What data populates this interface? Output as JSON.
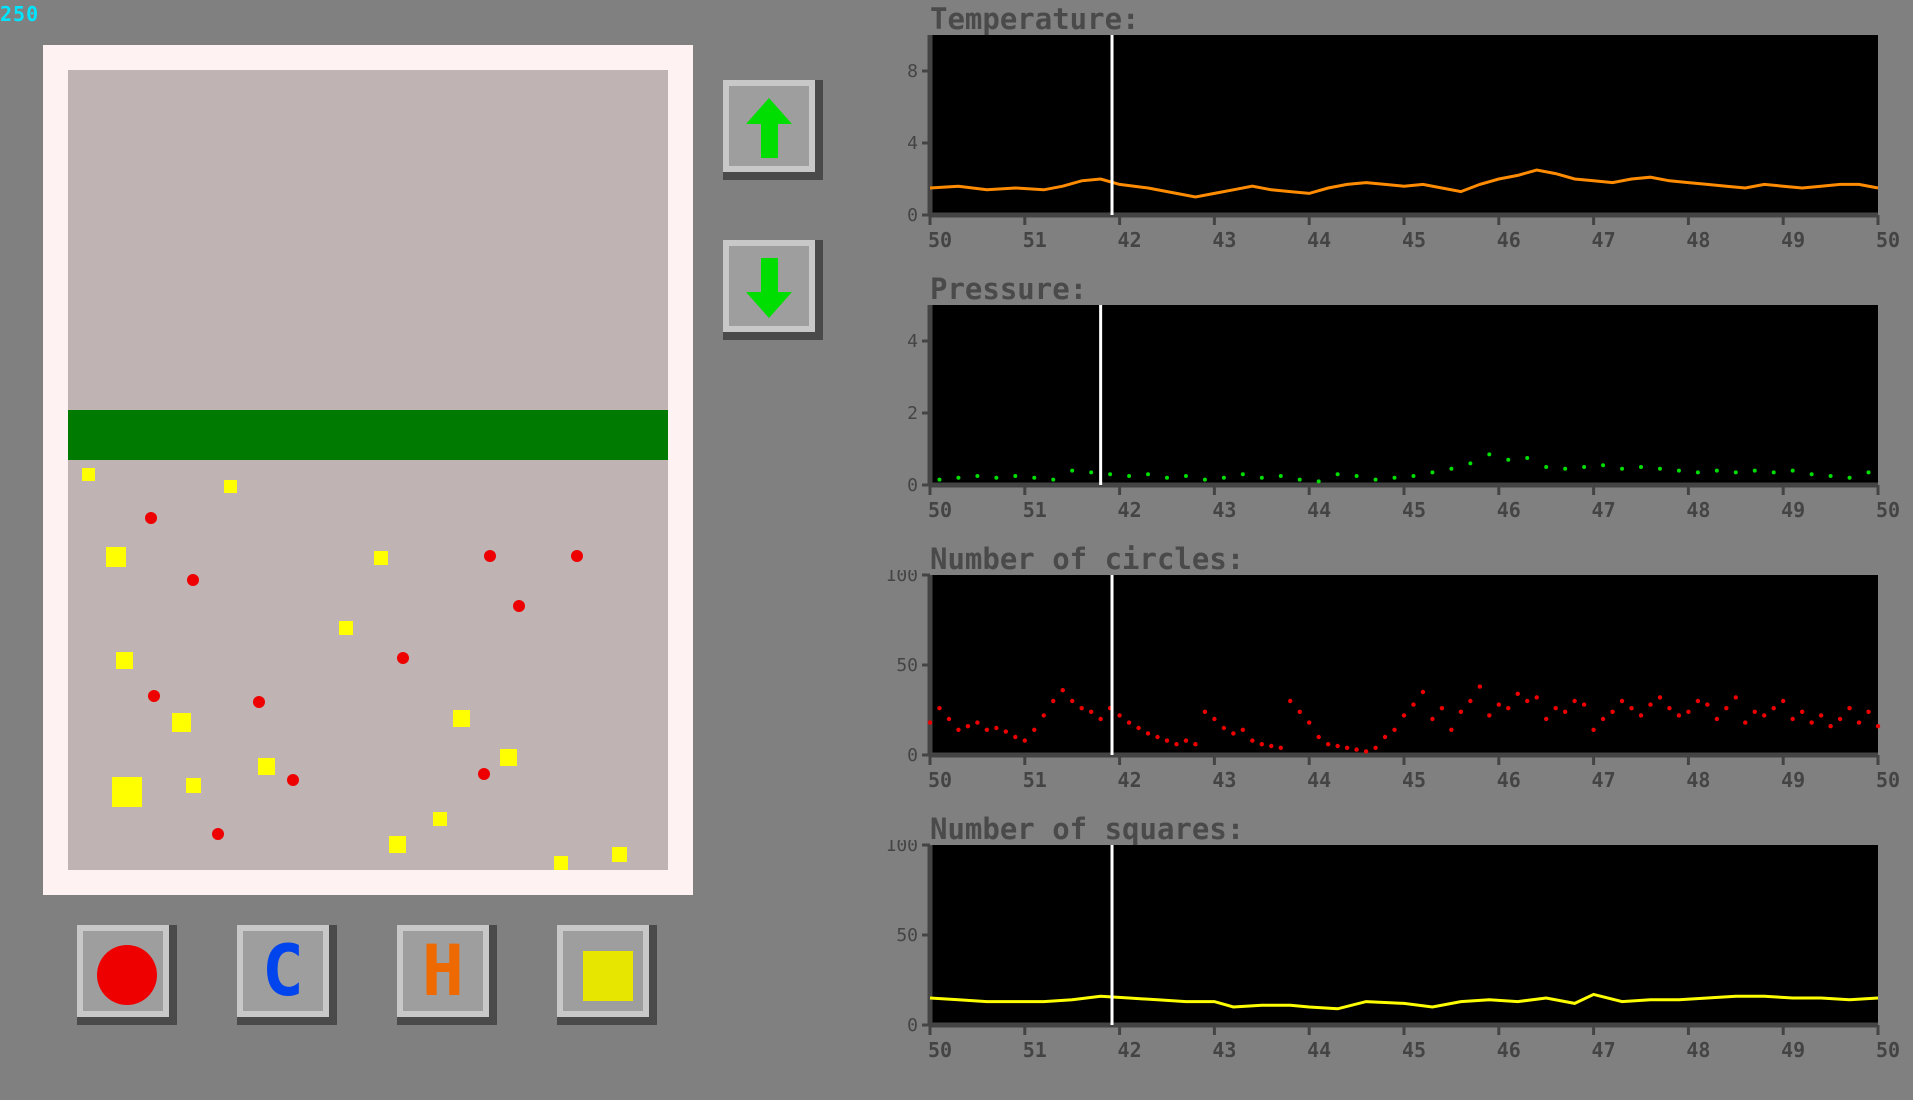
{
  "hud": {
    "counter": "250"
  },
  "simulation": {
    "squares": [
      {
        "x": 20,
        "y": 398,
        "s": 13
      },
      {
        "x": 162,
        "y": 410,
        "s": 13
      },
      {
        "x": 48,
        "y": 477,
        "s": 20
      },
      {
        "x": 313,
        "y": 481,
        "s": 14
      },
      {
        "x": 278,
        "y": 551,
        "s": 14
      },
      {
        "x": 56,
        "y": 582,
        "s": 17
      },
      {
        "x": 113,
        "y": 643,
        "s": 19
      },
      {
        "x": 393,
        "y": 640,
        "s": 17
      },
      {
        "x": 440,
        "y": 679,
        "s": 17
      },
      {
        "x": 59,
        "y": 707,
        "s": 30
      },
      {
        "x": 125,
        "y": 708,
        "s": 15
      },
      {
        "x": 198,
        "y": 688,
        "s": 17
      },
      {
        "x": 372,
        "y": 742,
        "s": 14
      },
      {
        "x": 329,
        "y": 766,
        "s": 17
      },
      {
        "x": 493,
        "y": 786,
        "s": 14
      },
      {
        "x": 551,
        "y": 777,
        "s": 15
      }
    ],
    "circles": [
      {
        "x": 83,
        "y": 448
      },
      {
        "x": 125,
        "y": 510
      },
      {
        "x": 422,
        "y": 486
      },
      {
        "x": 509,
        "y": 486
      },
      {
        "x": 451,
        "y": 536
      },
      {
        "x": 335,
        "y": 588
      },
      {
        "x": 86,
        "y": 626
      },
      {
        "x": 191,
        "y": 632
      },
      {
        "x": 225,
        "y": 710
      },
      {
        "x": 416,
        "y": 704
      },
      {
        "x": 150,
        "y": 764
      }
    ],
    "piston_top": 340
  },
  "controls": {
    "up_icon": "up-arrow-icon",
    "down_icon": "down-arrow-icon",
    "spawn_buttons": [
      {
        "icon": "red-circle-icon",
        "color": "#ee0000"
      },
      {
        "glyph": "C",
        "color": "#0044ee"
      },
      {
        "glyph": "H",
        "color": "#ee6a00"
      },
      {
        "icon": "yellow-square-icon",
        "color": "#e6e600"
      }
    ]
  },
  "chart_data": [
    {
      "type": "line",
      "title": "Temperature:",
      "color": "#ff8c00",
      "ylim": [
        0,
        10
      ],
      "yticks": [
        {
          "v": 0,
          "l": "0"
        },
        {
          "v": 4,
          "l": "4"
        },
        {
          "v": 8,
          "l": "8"
        }
      ],
      "xticks": [
        "50",
        "51",
        "42",
        "43",
        "44",
        "45",
        "46",
        "47",
        "48",
        "49",
        "50"
      ],
      "marker_x": 1.92,
      "series": [
        {
          "x": [
            0,
            0.3,
            0.6,
            0.9,
            1.2,
            1.4,
            1.6,
            1.8,
            2.0,
            2.3,
            2.6,
            2.8,
            3.0,
            3.2,
            3.4,
            3.6,
            3.8,
            4.0,
            4.2,
            4.4,
            4.6,
            4.8,
            5.0,
            5.2,
            5.4,
            5.6,
            5.8,
            6.0,
            6.2,
            6.4,
            6.6,
            6.8,
            7.0,
            7.2,
            7.4,
            7.6,
            7.8,
            8.0,
            8.2,
            8.4,
            8.6,
            8.8,
            9.0,
            9.2,
            9.4,
            9.6,
            9.8,
            10.0
          ],
          "y": [
            1.5,
            1.6,
            1.4,
            1.5,
            1.4,
            1.6,
            1.9,
            2.0,
            1.7,
            1.5,
            1.2,
            1.0,
            1.2,
            1.4,
            1.6,
            1.4,
            1.3,
            1.2,
            1.5,
            1.7,
            1.8,
            1.7,
            1.6,
            1.7,
            1.5,
            1.3,
            1.7,
            2.0,
            2.2,
            2.5,
            2.3,
            2.0,
            1.9,
            1.8,
            2.0,
            2.1,
            1.9,
            1.8,
            1.7,
            1.6,
            1.5,
            1.7,
            1.6,
            1.5,
            1.6,
            1.7,
            1.7,
            1.5
          ]
        }
      ]
    },
    {
      "type": "scatter",
      "title": "Pressure:",
      "color": "#00dd00",
      "ylim": [
        0,
        5
      ],
      "yticks": [
        {
          "v": 0,
          "l": "0"
        },
        {
          "v": 2,
          "l": "2"
        },
        {
          "v": 4,
          "l": "4"
        }
      ],
      "xticks": [
        "50",
        "51",
        "42",
        "43",
        "44",
        "45",
        "46",
        "47",
        "48",
        "49",
        "50"
      ],
      "marker_x": 1.8,
      "series": [
        {
          "x": [
            0.1,
            0.3,
            0.5,
            0.7,
            0.9,
            1.1,
            1.3,
            1.5,
            1.7,
            1.9,
            2.1,
            2.3,
            2.5,
            2.7,
            2.9,
            3.1,
            3.3,
            3.5,
            3.7,
            3.9,
            4.1,
            4.3,
            4.5,
            4.7,
            4.9,
            5.1,
            5.3,
            5.5,
            5.7,
            5.9,
            6.1,
            6.3,
            6.5,
            6.7,
            6.9,
            7.1,
            7.3,
            7.5,
            7.7,
            7.9,
            8.1,
            8.3,
            8.5,
            8.7,
            8.9,
            9.1,
            9.3,
            9.5,
            9.7,
            9.9
          ],
          "y": [
            0.15,
            0.2,
            0.25,
            0.2,
            0.25,
            0.2,
            0.15,
            0.4,
            0.35,
            0.3,
            0.25,
            0.3,
            0.2,
            0.25,
            0.15,
            0.2,
            0.3,
            0.2,
            0.25,
            0.15,
            0.1,
            0.3,
            0.25,
            0.15,
            0.2,
            0.25,
            0.35,
            0.45,
            0.6,
            0.85,
            0.7,
            0.75,
            0.5,
            0.45,
            0.5,
            0.55,
            0.45,
            0.5,
            0.45,
            0.4,
            0.35,
            0.4,
            0.35,
            0.4,
            0.35,
            0.4,
            0.3,
            0.25,
            0.2,
            0.35
          ]
        }
      ]
    },
    {
      "type": "scatter",
      "title": "Number of circles:",
      "color": "#ee0000",
      "ylim": [
        0,
        100
      ],
      "yticks": [
        {
          "v": 0,
          "l": "0"
        },
        {
          "v": 50,
          "l": "50"
        },
        {
          "v": 100,
          "l": "100"
        }
      ],
      "xticks": [
        "50",
        "51",
        "42",
        "43",
        "44",
        "45",
        "46",
        "47",
        "48",
        "49",
        "50"
      ],
      "marker_x": 1.92,
      "series": [
        {
          "x": [
            0,
            0.1,
            0.2,
            0.3,
            0.4,
            0.5,
            0.6,
            0.7,
            0.8,
            0.9,
            1.0,
            1.1,
            1.2,
            1.3,
            1.4,
            1.5,
            1.6,
            1.7,
            1.8,
            1.9,
            2.0,
            2.1,
            2.2,
            2.3,
            2.4,
            2.5,
            2.6,
            2.7,
            2.8,
            2.9,
            3.0,
            3.1,
            3.2,
            3.3,
            3.4,
            3.5,
            3.6,
            3.7,
            3.8,
            3.9,
            4.0,
            4.1,
            4.2,
            4.3,
            4.4,
            4.5,
            4.6,
            4.7,
            4.8,
            4.9,
            5.0,
            5.1,
            5.2,
            5.3,
            5.4,
            5.5,
            5.6,
            5.7,
            5.8,
            5.9,
            6.0,
            6.1,
            6.2,
            6.3,
            6.4,
            6.5,
            6.6,
            6.7,
            6.8,
            6.9,
            7.0,
            7.1,
            7.2,
            7.3,
            7.4,
            7.5,
            7.6,
            7.7,
            7.8,
            7.9,
            8.0,
            8.1,
            8.2,
            8.3,
            8.4,
            8.5,
            8.6,
            8.7,
            8.8,
            8.9,
            9.0,
            9.1,
            9.2,
            9.3,
            9.4,
            9.5,
            9.6,
            9.7,
            9.8,
            9.9,
            10.0
          ],
          "y": [
            18,
            26,
            20,
            14,
            16,
            18,
            14,
            15,
            13,
            10,
            8,
            14,
            22,
            30,
            36,
            30,
            26,
            24,
            20,
            26,
            22,
            18,
            15,
            12,
            10,
            8,
            6,
            8,
            6,
            24,
            20,
            15,
            12,
            14,
            8,
            6,
            5,
            4,
            30,
            24,
            18,
            10,
            6,
            5,
            4,
            3,
            2,
            4,
            10,
            14,
            22,
            28,
            35,
            20,
            26,
            14,
            24,
            30,
            38,
            22,
            28,
            26,
            34,
            30,
            32,
            20,
            26,
            24,
            30,
            28,
            14,
            20,
            24,
            30,
            26,
            22,
            28,
            32,
            26,
            22,
            24,
            30,
            28,
            20,
            26,
            32,
            18,
            24,
            22,
            26,
            30,
            20,
            24,
            18,
            22,
            16,
            20,
            26,
            18,
            24,
            16
          ]
        }
      ]
    },
    {
      "type": "line",
      "title": "Number of squares:",
      "color": "#ffff00",
      "ylim": [
        0,
        100
      ],
      "yticks": [
        {
          "v": 0,
          "l": "0"
        },
        {
          "v": 50,
          "l": "50"
        },
        {
          "v": 100,
          "l": "100"
        }
      ],
      "xticks": [
        "50",
        "51",
        "42",
        "43",
        "44",
        "45",
        "46",
        "47",
        "48",
        "49",
        "50"
      ],
      "marker_x": 1.92,
      "series": [
        {
          "x": [
            0,
            0.3,
            0.6,
            0.9,
            1.2,
            1.5,
            1.8,
            2.1,
            2.4,
            2.7,
            3.0,
            3.2,
            3.5,
            3.8,
            4.0,
            4.3,
            4.6,
            5.0,
            5.3,
            5.6,
            5.9,
            6.2,
            6.5,
            6.8,
            7.0,
            7.3,
            7.6,
            7.9,
            8.2,
            8.5,
            8.8,
            9.1,
            9.4,
            9.7,
            10.0
          ],
          "y": [
            15,
            14,
            13,
            13,
            13,
            14,
            16,
            15,
            14,
            13,
            13,
            10,
            11,
            11,
            10,
            9,
            13,
            12,
            10,
            13,
            14,
            13,
            15,
            12,
            17,
            13,
            14,
            14,
            15,
            16,
            16,
            15,
            15,
            14,
            15
          ]
        }
      ]
    }
  ]
}
